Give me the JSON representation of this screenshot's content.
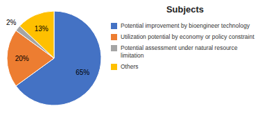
{
  "chart_data": {
    "type": "pie",
    "title": "Subjects",
    "categories": [
      "Potential improvement by bioengineer technology",
      "Utilization potential by economy or policy constraint",
      "Potential assessment under natural resource limitation",
      "Others"
    ],
    "values": [
      65,
      20,
      2,
      13
    ],
    "value_labels": [
      "65%",
      "20%",
      "2%",
      "13%"
    ],
    "colors": [
      "#4472C4",
      "#ED7D31",
      "#A5A5A5",
      "#FFC000"
    ],
    "data_labels": true,
    "legend": "right"
  }
}
